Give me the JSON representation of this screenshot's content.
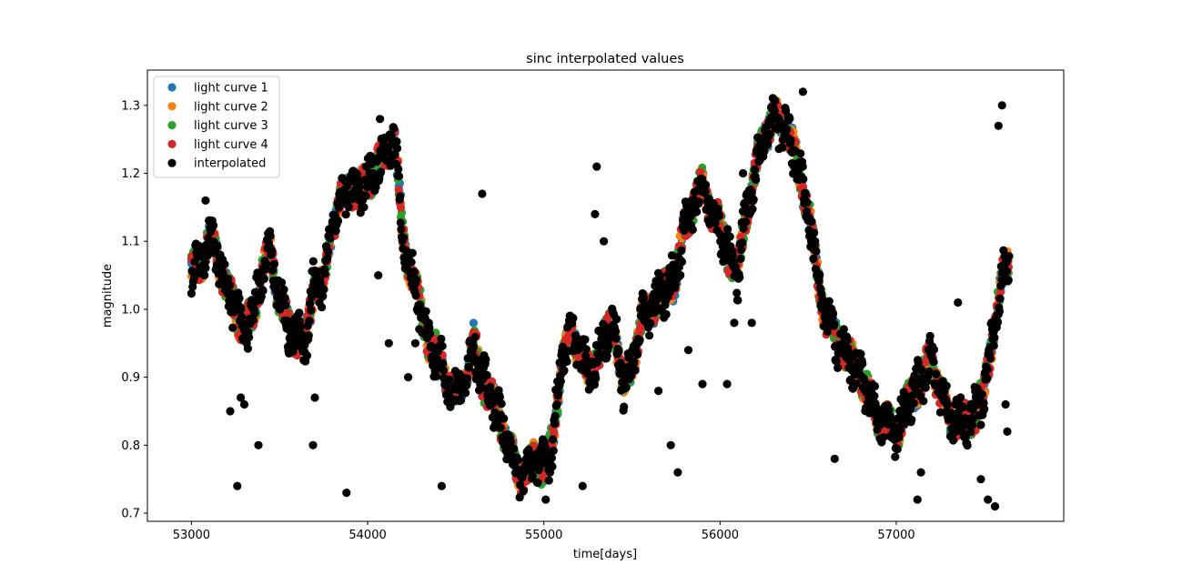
{
  "chart_data": {
    "type": "scatter",
    "title": "sinc interpolated values",
    "xlabel": "time[days]",
    "ylabel": "magnitude",
    "xlim": [
      52750,
      57950
    ],
    "ylim": [
      0.688,
      1.352
    ],
    "xticks": [
      53000,
      54000,
      55000,
      56000,
      57000
    ],
    "yticks": [
      0.7,
      0.8,
      0.9,
      1.0,
      1.1,
      1.2,
      1.3
    ],
    "xtick_labels": [
      "53000",
      "54000",
      "55000",
      "56000",
      "57000"
    ],
    "ytick_labels": [
      "0.7",
      "0.8",
      "0.9",
      "1.0",
      "1.1",
      "1.2",
      "1.3"
    ],
    "grid": false,
    "legend_position": "upper-left",
    "x_range": [
      53000,
      57640
    ],
    "trend": {
      "x": [
        53000,
        53050,
        53100,
        53150,
        53200,
        53250,
        53300,
        53350,
        53400,
        53450,
        53500,
        53550,
        53600,
        53650,
        53700,
        53750,
        53800,
        53850,
        53900,
        53950,
        54000,
        54050,
        54100,
        54150,
        54200,
        54250,
        54300,
        54350,
        54400,
        54450,
        54500,
        54550,
        54600,
        54650,
        54700,
        54750,
        54800,
        54850,
        54900,
        54950,
        55000,
        55050,
        55100,
        55150,
        55200,
        55250,
        55300,
        55350,
        55400,
        55450,
        55500,
        55550,
        55600,
        55650,
        55700,
        55750,
        55800,
        55850,
        55900,
        55950,
        56000,
        56050,
        56100,
        56150,
        56200,
        56250,
        56300,
        56350,
        56400,
        56450,
        56500,
        56550,
        56600,
        56650,
        56700,
        56750,
        56800,
        56850,
        56900,
        56950,
        57000,
        57050,
        57100,
        57150,
        57200,
        57250,
        57300,
        57350,
        57400,
        57450,
        57500,
        57550,
        57600,
        57640
      ],
      "y": [
        1.05,
        1.07,
        1.1,
        1.08,
        1.03,
        1.0,
        0.97,
        0.99,
        1.06,
        1.08,
        1.02,
        0.97,
        0.96,
        0.95,
        1.05,
        1.03,
        1.13,
        1.16,
        1.18,
        1.17,
        1.19,
        1.21,
        1.23,
        1.26,
        1.1,
        1.05,
        1.0,
        0.95,
        0.93,
        0.9,
        0.87,
        0.9,
        0.95,
        0.9,
        0.87,
        0.84,
        0.8,
        0.76,
        0.76,
        0.78,
        0.77,
        0.8,
        0.93,
        0.96,
        0.95,
        0.9,
        0.93,
        0.96,
        0.98,
        0.88,
        0.92,
        0.98,
        1.0,
        1.02,
        1.03,
        1.05,
        1.12,
        1.16,
        1.18,
        1.15,
        1.12,
        1.08,
        1.05,
        1.15,
        1.2,
        1.26,
        1.28,
        1.27,
        1.25,
        1.2,
        1.15,
        1.05,
        0.99,
        0.96,
        0.94,
        0.92,
        0.9,
        0.87,
        0.84,
        0.83,
        0.82,
        0.85,
        0.88,
        0.9,
        0.93,
        0.88,
        0.84,
        0.84,
        0.83,
        0.85,
        0.88,
        0.97,
        1.04,
        1.08
      ]
    },
    "series": [
      {
        "name": "light curve 1",
        "color": "#1f77b4"
      },
      {
        "name": "light curve 2",
        "color": "#ff7f0e"
      },
      {
        "name": "light curve 3",
        "color": "#2ca02c"
      },
      {
        "name": "light curve 4",
        "color": "#d62728"
      },
      {
        "name": "interpolated",
        "color": "#000000"
      }
    ],
    "outliers": {
      "x": [
        53080,
        53220,
        53260,
        53280,
        53300,
        53380,
        53690,
        53700,
        53880,
        54060,
        54120,
        54070,
        54230,
        54270,
        54420,
        54650,
        55010,
        55220,
        55300,
        55290,
        55340,
        55650,
        55720,
        55760,
        55820,
        55900,
        56040,
        56080,
        56130,
        56180,
        56470,
        56650,
        56720,
        57120,
        57140,
        57350,
        57480,
        57520,
        57560,
        57580,
        57600,
        57620,
        57630
      ],
      "y": [
        1.16,
        0.85,
        0.74,
        0.87,
        0.86,
        0.8,
        0.8,
        0.87,
        0.73,
        1.05,
        0.95,
        1.28,
        0.9,
        0.95,
        0.74,
        1.17,
        0.72,
        0.74,
        1.21,
        1.14,
        1.1,
        0.88,
        0.8,
        0.76,
        0.94,
        0.89,
        0.89,
        0.98,
        1.2,
        0.98,
        1.32,
        0.78,
        0.93,
        0.72,
        0.76,
        1.01,
        0.75,
        0.72,
        0.71,
        1.27,
        1.3,
        0.86,
        0.82
      ]
    }
  }
}
